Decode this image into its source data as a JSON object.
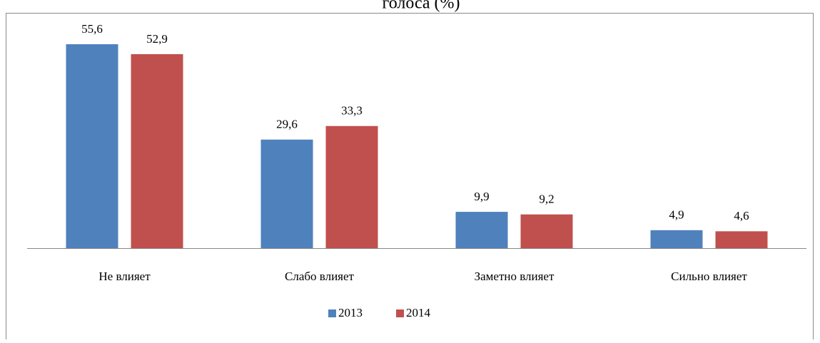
{
  "chart_data": {
    "type": "bar",
    "title": "голоса (%)",
    "categories": [
      "Не влияет",
      "Слабо влияет",
      "Заметно влияет",
      "Сильно влияет"
    ],
    "series": [
      {
        "name": "2013",
        "color": "#4f81bd",
        "values": [
          55.6,
          29.6,
          9.9,
          4.9
        ],
        "value_labels": [
          "55,6",
          "29,6",
          "9,9",
          "4,9"
        ]
      },
      {
        "name": "2014",
        "color": "#c0504d",
        "values": [
          52.9,
          33.3,
          9.2,
          4.6
        ],
        "value_labels": [
          "52,9",
          "33,3",
          "9,2",
          "4,6"
        ]
      }
    ],
    "ylim": [
      0,
      60
    ],
    "legend": "bottom"
  }
}
